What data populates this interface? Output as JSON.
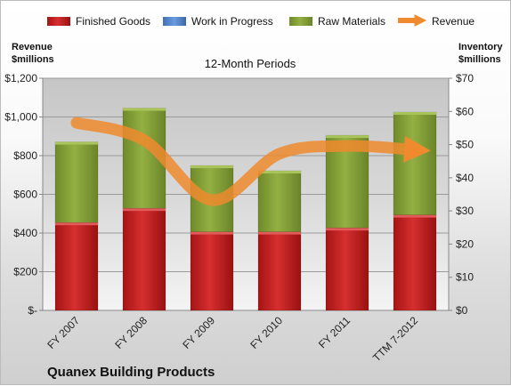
{
  "chart_data": {
    "type": "bar",
    "subtitle": "12-Month Periods",
    "company": "Quanex Building Products",
    "categories": [
      "FY 2007",
      "FY 2008",
      "FY 2009",
      "FY 2010",
      "FY 2011",
      "TTM 7-2012"
    ],
    "series": [
      {
        "name": "Finished Goods",
        "kind": "stacked-bar",
        "axis": "right",
        "color": "#cc2222",
        "values": [
          26.5,
          30.8,
          23.7,
          23.7,
          24.9,
          28.8
        ]
      },
      {
        "name": "Work in Progress",
        "kind": "stacked-bar",
        "axis": "right",
        "color": "#5b8fd4",
        "values": [
          0,
          0,
          0,
          0,
          0,
          0
        ]
      },
      {
        "name": "Raw Materials",
        "kind": "stacked-bar",
        "axis": "right",
        "color": "#8aa83c",
        "values": [
          24.3,
          30.2,
          20.0,
          18.4,
          27.9,
          31.0
        ]
      },
      {
        "name": "Revenue",
        "kind": "line",
        "axis": "left",
        "color": "#ef8a2e",
        "values": [
          970,
          880,
          570,
          810,
          850,
          830
        ]
      }
    ],
    "left_axis": {
      "label_line1": "Revenue",
      "label_line2": "$millions",
      "min": 0,
      "max": 1200,
      "ticks": [
        0,
        200,
        400,
        600,
        800,
        1000,
        1200
      ],
      "tick_labels": [
        "$-",
        "$200",
        "$400",
        "$600",
        "$800",
        "$1,000",
        "$1,200"
      ]
    },
    "right_axis": {
      "label_line1": "Inventory",
      "label_line2": "$millions",
      "min": 0,
      "max": 70,
      "ticks": [
        0,
        10,
        20,
        30,
        40,
        50,
        60,
        70
      ],
      "tick_labels": [
        "$0",
        "$10",
        "$20",
        "$30",
        "$40",
        "$50",
        "$60",
        "$70"
      ]
    },
    "grid": true,
    "legend_position": "top"
  }
}
